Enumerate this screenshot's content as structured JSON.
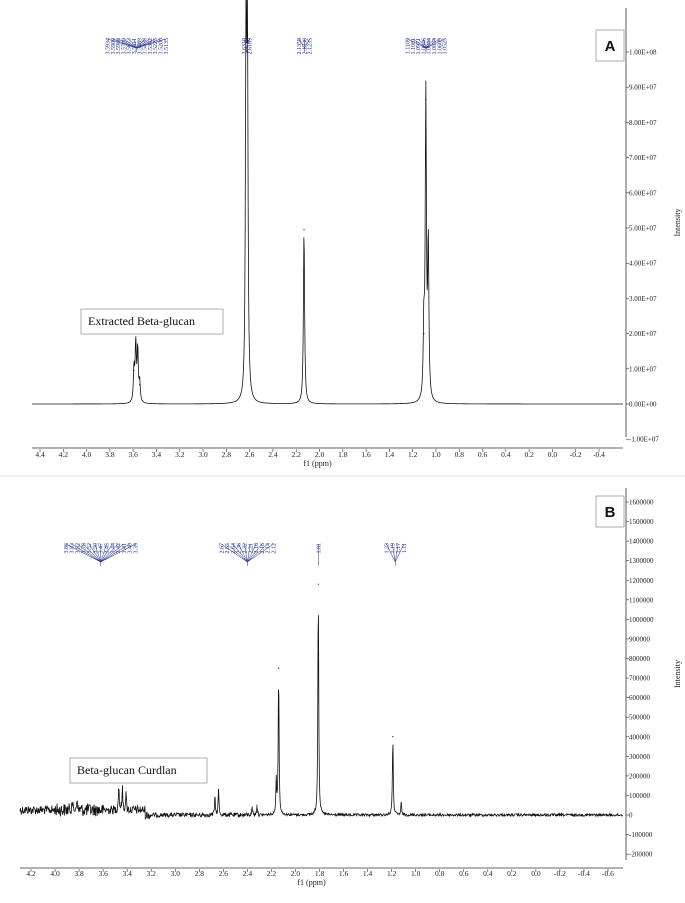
{
  "chart_data": [
    {
      "type": "line",
      "panel_label": "A",
      "caption": "Extracted Beta-glucan",
      "xlabel": "f1 (ppm)",
      "ylabel": "Intensity",
      "xlim": [
        4.55,
        -0.55
      ],
      "ylim": [
        -10000000,
        105000000
      ],
      "x_ticks": [
        "4.4",
        "4.2",
        "4.0",
        "3.8",
        "3.6",
        "3.4",
        "3.2",
        "3.0",
        "2.8",
        "2.6",
        "2.4",
        "2.2",
        "2.0",
        "1.8",
        "1.6",
        "1.4",
        "1.2",
        "1.0",
        "0.8",
        "0.6",
        "0.4",
        "0.2",
        "0.0",
        "-0.2",
        "-0.4"
      ],
      "y_ticks": [
        "-1.00E+07",
        "0.00E+00",
        "1.00E+07",
        "2.00E+07",
        "3.00E+07",
        "4.00E+07",
        "5.00E+07",
        "6.00E+07",
        "7.00E+07",
        "8.00E+07",
        "9.00E+07",
        "1.00E+08"
      ],
      "peaks": [
        {
          "x": 3.593,
          "y": 9500000
        },
        {
          "x": 3.578,
          "y": 16500000
        },
        {
          "x": 3.561,
          "y": 15000000
        },
        {
          "x": 3.544,
          "y": 5500000
        },
        {
          "x": 2.631,
          "y": 100000000
        },
        {
          "x": 2.619,
          "y": 100000000
        },
        {
          "x": 2.133,
          "y": 49500000
        },
        {
          "x": 1.104,
          "y": 20000000
        },
        {
          "x": 1.087,
          "y": 86500000
        },
        {
          "x": 1.066,
          "y": 44500000
        }
      ],
      "peak_groups": [
        {
          "labels": [
            "3.5934",
            "3.5909",
            "3.5908",
            "3.5700",
            "3.5673",
            "3.5611",
            "3.5463",
            "3.5438",
            "3.5382",
            "3.5225",
            "3.5200",
            "3.5135"
          ]
        },
        {
          "labels": [
            "2.6310",
            "2.6189"
          ]
        },
        {
          "labels": [
            "2.1358",
            "2.1330",
            "2.1235"
          ]
        },
        {
          "labels": [
            "1.1109",
            "1.1081",
            "1.0971",
            "1.0846",
            "1.0844",
            "1.0634",
            "1.0609",
            "1.0525"
          ]
        }
      ]
    },
    {
      "type": "line",
      "panel_label": "B",
      "caption": "Beta-glucan Curdlan",
      "xlabel": "f1 (ppm)",
      "ylabel": "Intensity",
      "xlim": [
        4.3,
        -0.75
      ],
      "ylim": [
        -250000,
        1650000
      ],
      "x_ticks": [
        "4.2",
        "4.0",
        "3.8",
        "3.6",
        "3.4",
        "3.2",
        "3.0",
        "2.8",
        "2.6",
        "2.4",
        "2.2",
        "2.0",
        "1.8",
        "1.6",
        "1.4",
        "1.2",
        "1.0",
        "0.8",
        "0.6",
        "0.4",
        "0.2",
        "0.0",
        "-0.2",
        "-0.4",
        "-0.6"
      ],
      "y_ticks": [
        "-200000",
        "-100000",
        "0",
        "100000",
        "200000",
        "300000",
        "400000",
        "500000",
        "600000",
        "700000",
        "800000",
        "900000",
        "1000000",
        "1100000",
        "1200000",
        "1300000",
        "1400000",
        "1500000",
        "1600000"
      ],
      "peaks": [
        {
          "x": 3.86,
          "y": 50000
        },
        {
          "x": 3.82,
          "y": 60000
        },
        {
          "x": 3.47,
          "y": 130000
        },
        {
          "x": 3.44,
          "y": 110000
        },
        {
          "x": 3.41,
          "y": 80000
        },
        {
          "x": 2.67,
          "y": 90000
        },
        {
          "x": 2.64,
          "y": 130000
        },
        {
          "x": 2.36,
          "y": 40000
        },
        {
          "x": 2.32,
          "y": 50000
        },
        {
          "x": 2.16,
          "y": 170000
        },
        {
          "x": 2.14,
          "y": 750000
        },
        {
          "x": 1.81,
          "y": 1180000
        },
        {
          "x": 1.19,
          "y": 400000
        },
        {
          "x": 1.12,
          "y": 60000
        }
      ],
      "peak_groups": [
        {
          "labels": [
            "3.86",
            "3.83",
            "3.82",
            "3.78",
            "3.52",
            "3.50",
            "3.47",
            "3.45",
            "3.44",
            "3.42",
            "3.41",
            "3.40",
            "3.39"
          ]
        },
        {
          "labels": [
            "2.67",
            "2.65",
            "2.64",
            "2.36",
            "2.32",
            "2.21",
            "2.18",
            "2.16",
            "2.14",
            "2.12"
          ]
        },
        {
          "labels": [
            "1.81"
          ]
        },
        {
          "labels": [
            "1.23",
            "1.19",
            "1.17",
            "1.11"
          ]
        }
      ]
    }
  ]
}
